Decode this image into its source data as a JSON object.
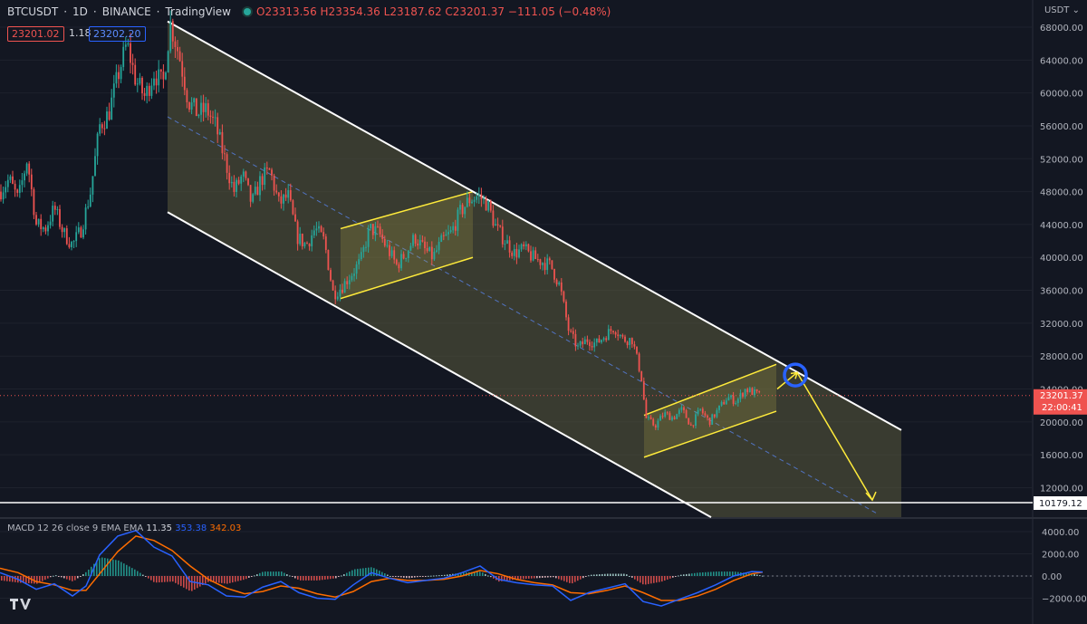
{
  "header": {
    "symbol": "BTCUSDT",
    "interval": "1D",
    "exchange": "BINANCE",
    "source": "TradingView",
    "open": "O23313.56",
    "high": "H23354.36",
    "low": "L23187.62",
    "close": "C23201.37",
    "change": "−111.05 (−0.48%)"
  },
  "order": {
    "sell": "23201.02",
    "spread": "1.18",
    "buy": "23202.20"
  },
  "currency_menu": "USDT",
  "macd": {
    "label": "MACD 12 26 close 9 EMA EMA",
    "hist": "11.35",
    "macd": "353.38",
    "signal": "342.03"
  },
  "colors": {
    "background": "#131722",
    "up": "#26a69a",
    "down": "#ef5350",
    "channel": "#ffffff",
    "channel_fill": "#5a5a3c",
    "flag": "#ffeb3b",
    "macd_line": "#2962ff",
    "signal_line": "#ff6d00",
    "circle": "#2962ff"
  },
  "chart_data": [
    {
      "type": "candlestick",
      "ylim": [
        8000,
        70000
      ],
      "y_ticks": [
        "68000.00",
        "64000.00",
        "60000.00",
        "56000.00",
        "52000.00",
        "48000.00",
        "44000.00",
        "40000.00",
        "36000.00",
        "32000.00",
        "28000.00",
        "24000.00",
        "20000.00",
        "16000.00",
        "12000.00"
      ],
      "last_price_label": "23201.37",
      "countdown_label": "22:00:41",
      "horizontal_line_label": "10179.12",
      "close_path": [
        {
          "x": 0,
          "y": 48000
        },
        {
          "x": 10,
          "y": 49500
        },
        {
          "x": 20,
          "y": 47000
        },
        {
          "x": 30,
          "y": 52000
        },
        {
          "x": 40,
          "y": 44000
        },
        {
          "x": 50,
          "y": 43500
        },
        {
          "x": 60,
          "y": 46000
        },
        {
          "x": 70,
          "y": 43000
        },
        {
          "x": 80,
          "y": 41500
        },
        {
          "x": 90,
          "y": 43500
        },
        {
          "x": 100,
          "y": 48000
        },
        {
          "x": 110,
          "y": 56000
        },
        {
          "x": 120,
          "y": 57500
        },
        {
          "x": 130,
          "y": 62000
        },
        {
          "x": 140,
          "y": 66000
        },
        {
          "x": 150,
          "y": 61500
        },
        {
          "x": 160,
          "y": 59500
        },
        {
          "x": 170,
          "y": 62500
        },
        {
          "x": 180,
          "y": 61000
        },
        {
          "x": 188,
          "y": 68500
        },
        {
          "x": 198,
          "y": 64500
        },
        {
          "x": 208,
          "y": 59000
        },
        {
          "x": 218,
          "y": 57500
        },
        {
          "x": 228,
          "y": 58000
        },
        {
          "x": 238,
          "y": 56000
        },
        {
          "x": 248,
          "y": 52000
        },
        {
          "x": 258,
          "y": 48000
        },
        {
          "x": 268,
          "y": 50000
        },
        {
          "x": 278,
          "y": 46500
        },
        {
          "x": 288,
          "y": 49500
        },
        {
          "x": 298,
          "y": 50500
        },
        {
          "x": 308,
          "y": 46500
        },
        {
          "x": 318,
          "y": 47500
        },
        {
          "x": 328,
          "y": 42500
        },
        {
          "x": 338,
          "y": 41500
        },
        {
          "x": 348,
          "y": 43500
        },
        {
          "x": 358,
          "y": 42000
        },
        {
          "x": 368,
          "y": 35500
        },
        {
          "x": 378,
          "y": 36500
        },
        {
          "x": 388,
          "y": 38000
        },
        {
          "x": 398,
          "y": 39500
        },
        {
          "x": 408,
          "y": 43500
        },
        {
          "x": 418,
          "y": 43000
        },
        {
          "x": 428,
          "y": 41000
        },
        {
          "x": 438,
          "y": 39000
        },
        {
          "x": 448,
          "y": 40500
        },
        {
          "x": 458,
          "y": 42500
        },
        {
          "x": 468,
          "y": 41000
        },
        {
          "x": 478,
          "y": 40000
        },
        {
          "x": 488,
          "y": 42000
        },
        {
          "x": 498,
          "y": 43000
        },
        {
          "x": 508,
          "y": 45500
        },
        {
          "x": 518,
          "y": 47000
        },
        {
          "x": 528,
          "y": 47500
        },
        {
          "x": 538,
          "y": 46500
        },
        {
          "x": 548,
          "y": 43500
        },
        {
          "x": 558,
          "y": 42000
        },
        {
          "x": 568,
          "y": 40500
        },
        {
          "x": 578,
          "y": 41000
        },
        {
          "x": 588,
          "y": 40000
        },
        {
          "x": 598,
          "y": 39500
        },
        {
          "x": 608,
          "y": 39000
        },
        {
          "x": 618,
          "y": 36500
        },
        {
          "x": 628,
          "y": 31000
        },
        {
          "x": 638,
          "y": 29000
        },
        {
          "x": 648,
          "y": 30000
        },
        {
          "x": 658,
          "y": 29500
        },
        {
          "x": 668,
          "y": 30500
        },
        {
          "x": 678,
          "y": 31500
        },
        {
          "x": 688,
          "y": 30000
        },
        {
          "x": 698,
          "y": 30000
        },
        {
          "x": 708,
          "y": 25500
        },
        {
          "x": 713,
          "y": 20500
        },
        {
          "x": 723,
          "y": 19500
        },
        {
          "x": 733,
          "y": 21000
        },
        {
          "x": 743,
          "y": 20500
        },
        {
          "x": 753,
          "y": 21500
        },
        {
          "x": 763,
          "y": 19500
        },
        {
          "x": 773,
          "y": 21500
        },
        {
          "x": 783,
          "y": 20000
        },
        {
          "x": 793,
          "y": 21500
        },
        {
          "x": 803,
          "y": 23000
        },
        {
          "x": 813,
          "y": 22500
        },
        {
          "x": 823,
          "y": 24000
        },
        {
          "x": 833,
          "y": 23500
        },
        {
          "x": 840,
          "y": 23201
        }
      ],
      "channel": {
        "upper": [
          {
            "x": 185,
            "y": 68700
          },
          {
            "x": 995,
            "y": 19000
          }
        ],
        "lower": [
          {
            "x": 185,
            "y": 45500
          },
          {
            "x": 785,
            "y": 8400
          }
        ],
        "right_edge": [
          {
            "x": 995,
            "y": 19000
          },
          {
            "x": 995,
            "y": 8400
          }
        ]
      },
      "flags": [
        {
          "points": [
            {
              "x": 376,
              "y": 43500
            },
            {
              "x": 522,
              "y": 48000
            },
            {
              "x": 522,
              "y": 40000
            },
            {
              "x": 376,
              "y": 35000
            }
          ]
        },
        {
          "points": [
            {
              "x": 711,
              "y": 20800
            },
            {
              "x": 857,
              "y": 27000
            },
            {
              "x": 857,
              "y": 21300
            },
            {
              "x": 711,
              "y": 15700
            }
          ]
        }
      ],
      "projection": [
        {
          "x": 858,
          "y": 24000
        },
        {
          "x": 880,
          "y": 26000
        },
        {
          "x": 963,
          "y": 10500
        }
      ],
      "horizontal_line_price": 10179.12
    },
    {
      "type": "macd",
      "ylim": [
        -3500,
        5000
      ],
      "y_ticks": [
        "4000.00",
        "2000.00",
        "0.00",
        "−2000.00"
      ],
      "macd_line": [
        {
          "x": 0,
          "y": 300
        },
        {
          "x": 20,
          "y": -300
        },
        {
          "x": 40,
          "y": -1200
        },
        {
          "x": 60,
          "y": -700
        },
        {
          "x": 80,
          "y": -1800
        },
        {
          "x": 95,
          "y": -900
        },
        {
          "x": 110,
          "y": 1900
        },
        {
          "x": 130,
          "y": 3600
        },
        {
          "x": 150,
          "y": 4100
        },
        {
          "x": 170,
          "y": 2600
        },
        {
          "x": 190,
          "y": 1800
        },
        {
          "x": 210,
          "y": -500
        },
        {
          "x": 230,
          "y": -800
        },
        {
          "x": 250,
          "y": -1800
        },
        {
          "x": 270,
          "y": -1900
        },
        {
          "x": 290,
          "y": -1000
        },
        {
          "x": 310,
          "y": -500
        },
        {
          "x": 330,
          "y": -1500
        },
        {
          "x": 350,
          "y": -2000
        },
        {
          "x": 370,
          "y": -2100
        },
        {
          "x": 390,
          "y": -800
        },
        {
          "x": 410,
          "y": 300
        },
        {
          "x": 430,
          "y": -200
        },
        {
          "x": 450,
          "y": -600
        },
        {
          "x": 470,
          "y": -400
        },
        {
          "x": 490,
          "y": -200
        },
        {
          "x": 510,
          "y": 300
        },
        {
          "x": 530,
          "y": 900
        },
        {
          "x": 550,
          "y": -300
        },
        {
          "x": 570,
          "y": -600
        },
        {
          "x": 590,
          "y": -800
        },
        {
          "x": 610,
          "y": -900
        },
        {
          "x": 630,
          "y": -2200
        },
        {
          "x": 650,
          "y": -1500
        },
        {
          "x": 670,
          "y": -1100
        },
        {
          "x": 690,
          "y": -700
        },
        {
          "x": 710,
          "y": -2300
        },
        {
          "x": 730,
          "y": -2700
        },
        {
          "x": 750,
          "y": -2100
        },
        {
          "x": 770,
          "y": -1500
        },
        {
          "x": 790,
          "y": -800
        },
        {
          "x": 810,
          "y": 0
        },
        {
          "x": 830,
          "y": 400
        },
        {
          "x": 842,
          "y": 353
        }
      ],
      "signal_line": [
        {
          "x": 0,
          "y": 700
        },
        {
          "x": 20,
          "y": 300
        },
        {
          "x": 40,
          "y": -500
        },
        {
          "x": 60,
          "y": -800
        },
        {
          "x": 80,
          "y": -1300
        },
        {
          "x": 95,
          "y": -1300
        },
        {
          "x": 110,
          "y": 200
        },
        {
          "x": 130,
          "y": 2200
        },
        {
          "x": 150,
          "y": 3600
        },
        {
          "x": 170,
          "y": 3200
        },
        {
          "x": 190,
          "y": 2300
        },
        {
          "x": 210,
          "y": 900
        },
        {
          "x": 230,
          "y": -300
        },
        {
          "x": 250,
          "y": -1100
        },
        {
          "x": 270,
          "y": -1600
        },
        {
          "x": 290,
          "y": -1400
        },
        {
          "x": 310,
          "y": -900
        },
        {
          "x": 330,
          "y": -1100
        },
        {
          "x": 350,
          "y": -1600
        },
        {
          "x": 370,
          "y": -1900
        },
        {
          "x": 390,
          "y": -1400
        },
        {
          "x": 410,
          "y": -500
        },
        {
          "x": 430,
          "y": -200
        },
        {
          "x": 450,
          "y": -400
        },
        {
          "x": 470,
          "y": -400
        },
        {
          "x": 490,
          "y": -300
        },
        {
          "x": 510,
          "y": 0
        },
        {
          "x": 530,
          "y": 500
        },
        {
          "x": 550,
          "y": 200
        },
        {
          "x": 570,
          "y": -300
        },
        {
          "x": 590,
          "y": -600
        },
        {
          "x": 610,
          "y": -800
        },
        {
          "x": 630,
          "y": -1500
        },
        {
          "x": 650,
          "y": -1600
        },
        {
          "x": 670,
          "y": -1300
        },
        {
          "x": 690,
          "y": -900
        },
        {
          "x": 710,
          "y": -1500
        },
        {
          "x": 730,
          "y": -2200
        },
        {
          "x": 750,
          "y": -2200
        },
        {
          "x": 770,
          "y": -1800
        },
        {
          "x": 790,
          "y": -1200
        },
        {
          "x": 810,
          "y": -400
        },
        {
          "x": 830,
          "y": 200
        },
        {
          "x": 842,
          "y": 342
        }
      ]
    }
  ]
}
